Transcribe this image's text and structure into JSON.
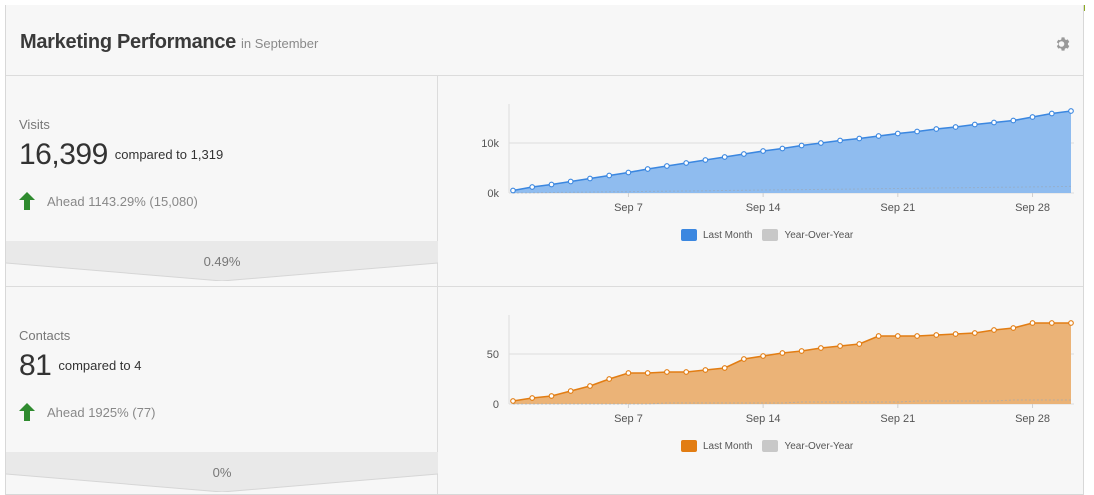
{
  "colors": {
    "blue": "#3b87e0",
    "orange": "#e27d13",
    "green": "#8cab20",
    "up_arrow": "#2f8b2f",
    "grey": "#c8c8c8"
  },
  "header": {
    "title": "Marketing Performance",
    "subtitle": "in September",
    "settings_icon": "gear-icon"
  },
  "metrics": [
    {
      "label": "Visits",
      "value": "16,399",
      "compare": "compared to 1,319",
      "ahead": "Ahead 1143.29% (15,080)",
      "conversion": "0.49%"
    },
    {
      "label": "Contacts",
      "value": "81",
      "compare": "compared to 4",
      "ahead": "Ahead 1925% (77)",
      "conversion": "0%"
    }
  ],
  "legend": {
    "last_month": "Last Month",
    "yoy": "Year-Over-Year"
  },
  "chart_data": [
    {
      "type": "area",
      "title": "Visits",
      "x_ticks": [
        "Sep 7",
        "Sep 14",
        "Sep 21",
        "Sep 28"
      ],
      "y_ticks": [
        "0k",
        "10k"
      ],
      "ylim": [
        0,
        17000
      ],
      "x": [
        1,
        2,
        3,
        4,
        5,
        6,
        7,
        8,
        9,
        10,
        11,
        12,
        13,
        14,
        15,
        16,
        17,
        18,
        19,
        20,
        21,
        22,
        23,
        24,
        25,
        26,
        27,
        28,
        29,
        30
      ],
      "series": [
        {
          "name": "Last Month",
          "values": [
            500,
            1200,
            1700,
            2300,
            2900,
            3500,
            4100,
            4800,
            5400,
            6000,
            6600,
            7200,
            7800,
            8400,
            8900,
            9500,
            10000,
            10500,
            10900,
            11400,
            11900,
            12300,
            12800,
            13200,
            13700,
            14100,
            14500,
            15200,
            15900,
            16399
          ]
        },
        {
          "name": "Year-Over-Year",
          "values": [
            0,
            50,
            100,
            140,
            180,
            230,
            270,
            320,
            360,
            410,
            450,
            500,
            540,
            590,
            630,
            680,
            720,
            770,
            810,
            860,
            900,
            950,
            990,
            1040,
            1080,
            1130,
            1170,
            1220,
            1270,
            1319
          ]
        }
      ]
    },
    {
      "type": "area",
      "title": "Contacts",
      "x_ticks": [
        "Sep 7",
        "Sep 14",
        "Sep 21",
        "Sep 28"
      ],
      "y_ticks": [
        "0",
        "50"
      ],
      "ylim": [
        0,
        85
      ],
      "x": [
        1,
        2,
        3,
        4,
        5,
        6,
        7,
        8,
        9,
        10,
        11,
        12,
        13,
        14,
        15,
        16,
        17,
        18,
        19,
        20,
        21,
        22,
        23,
        24,
        25,
        26,
        27,
        28,
        29,
        30
      ],
      "series": [
        {
          "name": "Last Month",
          "values": [
            3,
            6,
            8,
            13,
            18,
            25,
            31,
            31,
            32,
            32,
            34,
            36,
            45,
            48,
            51,
            53,
            56,
            58,
            60,
            68,
            68,
            68,
            69,
            70,
            71,
            74,
            76,
            81,
            81,
            81
          ]
        },
        {
          "name": "Year-Over-Year",
          "values": [
            0,
            0,
            0,
            0,
            0,
            0,
            0,
            0,
            1,
            1,
            1,
            1,
            1,
            1,
            1,
            2,
            2,
            2,
            2,
            2,
            2,
            3,
            3,
            3,
            3,
            3,
            4,
            4,
            4,
            4
          ]
        }
      ]
    }
  ]
}
